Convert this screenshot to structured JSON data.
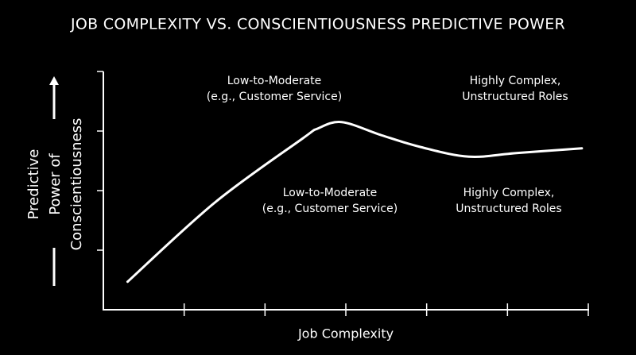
{
  "chart_data": {
    "type": "line",
    "title": "JOB COMPLEXITY VS. CONSCIENTIOUSNESS PREDICTIVE POWER",
    "xlabel": "Job Complexity",
    "ylabel": [
      "Predictive",
      "Power of",
      "Conscientiousness"
    ],
    "x": [
      0.3,
      1.38,
      2.46,
      2.65,
      2.95,
      3.44,
      3.93,
      4.52,
      5.11,
      5.92
    ],
    "series": [
      {
        "color": "#ffffff",
        "values": [
          0.47,
          1.8,
          2.87,
          3.04,
          3.15,
          2.93,
          2.73,
          2.57,
          2.63,
          2.71
        ]
      }
    ],
    "xlim": [
      0,
      6
    ],
    "ylim": [
      0,
      4
    ],
    "xticks": [
      1,
      2,
      3,
      4,
      5,
      6
    ],
    "yticks": [
      1,
      2,
      3,
      4
    ],
    "annotations": [
      {
        "lines": [
          "Low-to-Moderate",
          "(e.g., Customer Service)"
        ]
      },
      {
        "lines": [
          "Highly Complex,",
          "Unstructured Roles"
        ]
      },
      {
        "lines": [
          "Low-to-Moderate",
          "(e.g., Customer Service)"
        ]
      },
      {
        "lines": [
          "Highly Complex,",
          "Unstructured Roles"
        ]
      }
    ]
  }
}
